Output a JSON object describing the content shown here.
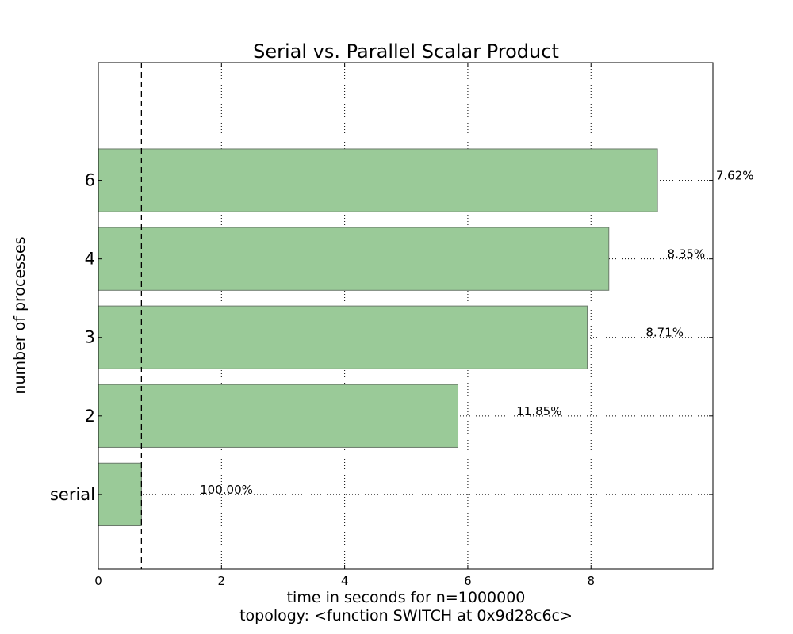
{
  "chart_data": {
    "type": "bar",
    "orientation": "horizontal",
    "title": "Serial vs. Parallel Scalar Product",
    "xlabel": "time in seconds for n=1000000",
    "xlabel2": "topology: <function SWITCH at 0x9d28c6c>",
    "ylabel": "number of processes",
    "categories": [
      "serial",
      "2",
      "3",
      "4",
      "6"
    ],
    "values": [
      0.7,
      5.84,
      7.94,
      8.29,
      9.08
    ],
    "bar_labels": [
      "100.00%",
      "11.85%",
      "8.71%",
      "8.35%",
      "7.62%"
    ],
    "reference_line": 0.7,
    "xlim": [
      0,
      9.98
    ],
    "xticks": [
      0,
      2,
      4,
      6,
      8
    ],
    "grid": true,
    "bar_color": "#9aca98",
    "bar_edge_color": "#6b7a6b"
  }
}
